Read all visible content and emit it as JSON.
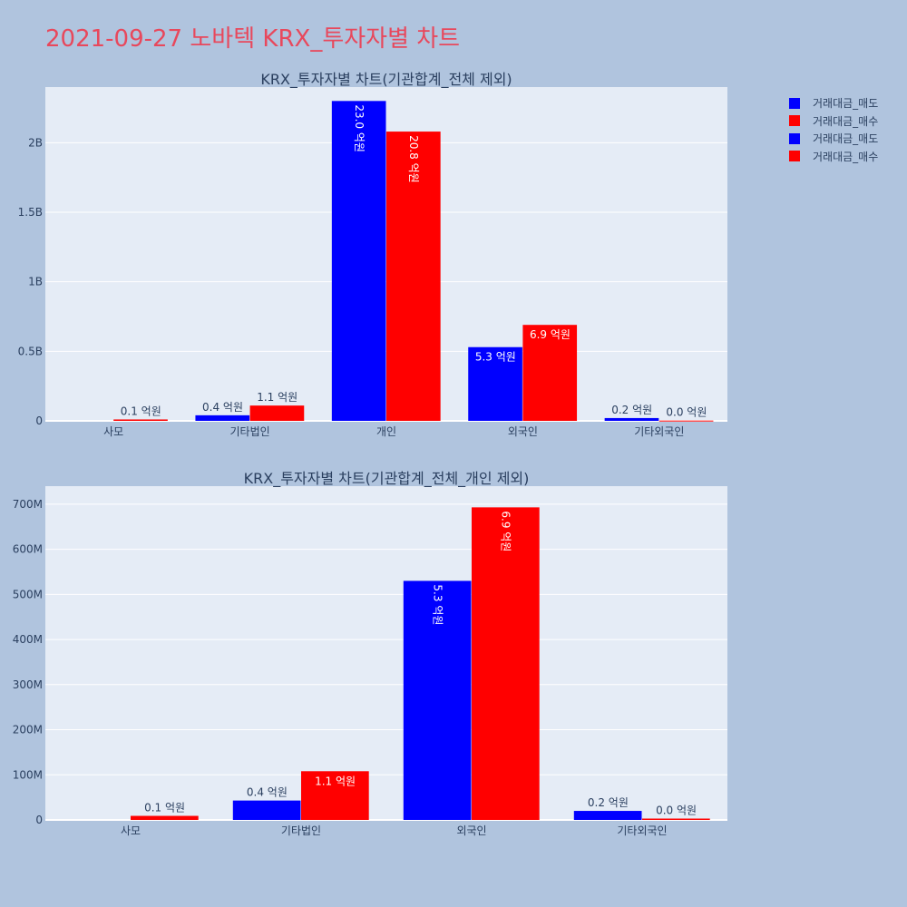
{
  "title": "2021-09-27 노바텍 KRX_투자자별 차트",
  "legend": [
    {
      "name": "거래대금_매도",
      "color": "#0000ff"
    },
    {
      "name": "거래대금_매수",
      "color": "#ff0000"
    },
    {
      "name": "거래대금_매도",
      "color": "#0000ff"
    },
    {
      "name": "거래대금_매수",
      "color": "#ff0000"
    }
  ],
  "chart_data": [
    {
      "type": "bar",
      "title": "KRX_투자자별 차트(기관합계_전체 제외)",
      "categories": [
        "사모",
        "기타법인",
        "개인",
        "외국인",
        "기타외국인"
      ],
      "ylim": [
        0,
        2.4
      ],
      "ytick_values": [
        0,
        0.5,
        1,
        1.5,
        2
      ],
      "yticks": [
        "0",
        "0.5B",
        "1B",
        "1.5B",
        "2B"
      ],
      "grid": true,
      "series": [
        {
          "name": "거래대금_매도",
          "color": "#0000ff",
          "values": [
            0,
            0.04,
            2.3,
            0.53,
            0.02
          ],
          "labels": [
            "",
            "0.4 억원",
            "23.0 억원",
            "5.3 억원",
            "0.2 억원"
          ]
        },
        {
          "name": "거래대금_매수",
          "color": "#ff0000",
          "values": [
            0.01,
            0.11,
            2.08,
            0.69,
            0.002
          ],
          "labels": [
            "0.1 억원",
            "1.1 억원",
            "20.8 억원",
            "6.9 억원",
            "0.0 억원"
          ]
        }
      ]
    },
    {
      "type": "bar",
      "title": "KRX_투자자별 차트(기관합계_전체_개인 제외)",
      "categories": [
        "사모",
        "기타법인",
        "외국인",
        "기타외국인"
      ],
      "ylim": [
        0,
        740
      ],
      "ytick_values": [
        0,
        100,
        200,
        300,
        400,
        500,
        600,
        700
      ],
      "yticks": [
        "0",
        "100M",
        "200M",
        "300M",
        "400M",
        "500M",
        "600M",
        "700M"
      ],
      "grid": true,
      "series": [
        {
          "name": "거래대금_매도",
          "color": "#0000ff",
          "values": [
            0,
            43,
            530,
            20
          ],
          "labels": [
            "",
            "0.4 억원",
            "5.3 억원",
            "0.2 억원"
          ]
        },
        {
          "name": "거래대금_매수",
          "color": "#ff0000",
          "values": [
            9,
            108,
            693,
            3
          ],
          "labels": [
            "0.1 억원",
            "1.1 억원",
            "6.9 억원",
            "0.0 억원"
          ]
        }
      ]
    }
  ]
}
